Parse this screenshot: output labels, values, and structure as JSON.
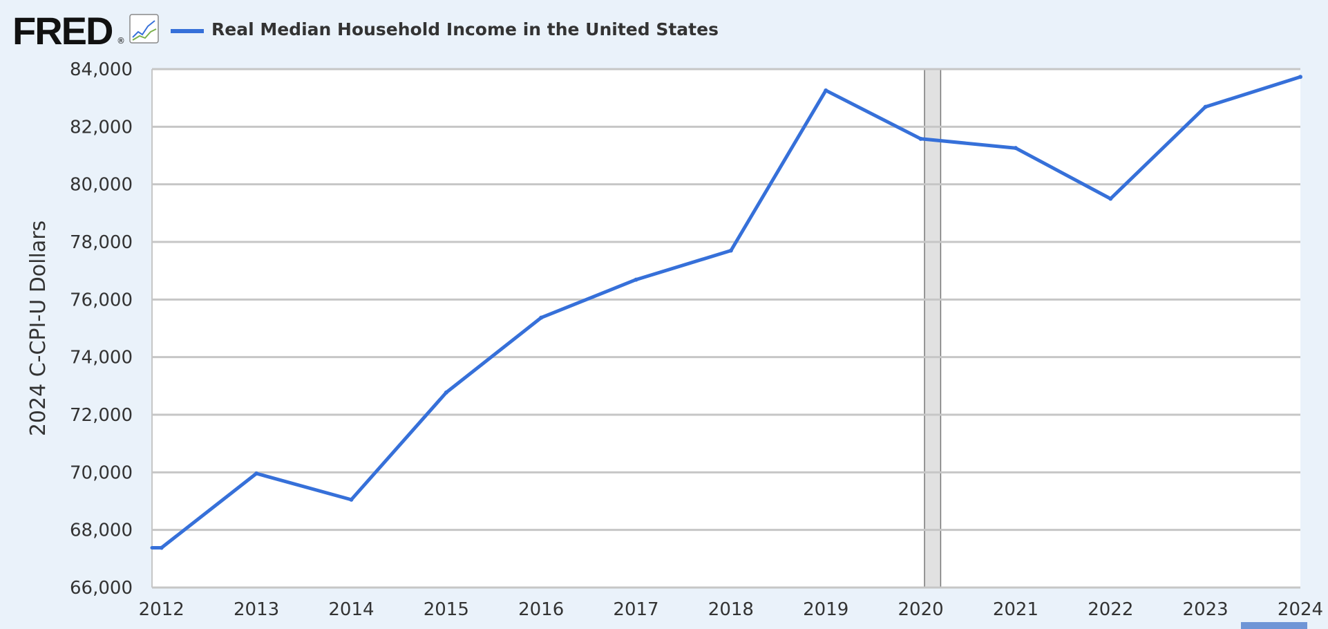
{
  "header": {
    "logo_text": "FRED",
    "logo_registered": "®",
    "logo_icon": "trend-chart-icon"
  },
  "colors": {
    "background": "#eaf2fa",
    "plot_background": "#ffffff",
    "series_line": "#3670d9",
    "gridline": "#c6c6c6",
    "recession_fill": "#e1e1e1",
    "recession_border": "#777777",
    "text": "#333333"
  },
  "chart_data": {
    "type": "line",
    "title": "",
    "xlabel": "",
    "ylabel": "2024 C-CPI-U Dollars",
    "legend": {
      "placement": "top-left",
      "entries": [
        "Real Median Household Income in the United States"
      ]
    },
    "grid": true,
    "xlim": [
      2011.9,
      2024
    ],
    "ylim": [
      66000,
      84000
    ],
    "x_ticks": [
      2012,
      2013,
      2014,
      2015,
      2016,
      2017,
      2018,
      2019,
      2020,
      2021,
      2022,
      2023,
      2024
    ],
    "x_tick_labels": [
      "2012",
      "2013",
      "2014",
      "2015",
      "2016",
      "2017",
      "2018",
      "2019",
      "2020",
      "2021",
      "2022",
      "2023",
      "2024"
    ],
    "y_ticks": [
      66000,
      68000,
      70000,
      72000,
      74000,
      76000,
      78000,
      80000,
      82000,
      84000
    ],
    "y_tick_labels": [
      "66,000",
      "68,000",
      "70,000",
      "72,000",
      "74,000",
      "76,000",
      "78,000",
      "80,000",
      "82,000",
      "84,000"
    ],
    "recession_shading": [
      {
        "start": 2020.04,
        "end": 2020.21
      }
    ],
    "series": [
      {
        "name": "Real Median Household Income in the United States",
        "x": [
          2012,
          2013,
          2014,
          2015,
          2016,
          2017,
          2018,
          2019,
          2020,
          2021,
          2022,
          2023,
          2024
        ],
        "y": [
          67380,
          69960,
          69050,
          72770,
          75370,
          76690,
          77700,
          83260,
          81580,
          81260,
          79500,
          82690,
          83730
        ]
      }
    ]
  }
}
